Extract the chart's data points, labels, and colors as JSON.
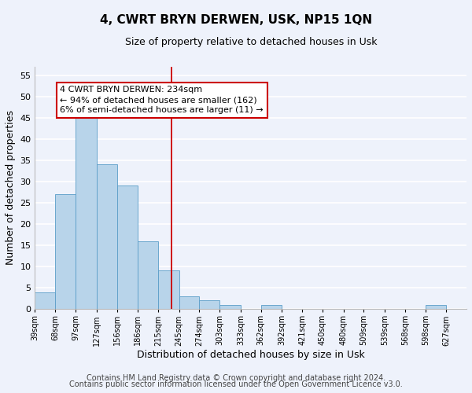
{
  "title": "4, CWRT BRYN DERWEN, USK, NP15 1QN",
  "subtitle": "Size of property relative to detached houses in Usk",
  "xlabel": "Distribution of detached houses by size in Usk",
  "ylabel": "Number of detached properties",
  "bar_left_edges": [
    39,
    68,
    97,
    127,
    156,
    186,
    215,
    245,
    274,
    303,
    333,
    362,
    392,
    421,
    450,
    480,
    509,
    539,
    568,
    598
  ],
  "bar_heights": [
    4,
    27,
    46,
    34,
    29,
    16,
    9,
    3,
    2,
    1,
    0,
    1,
    0,
    0,
    0,
    0,
    0,
    0,
    0,
    1
  ],
  "bar_widths": [
    29,
    29,
    30,
    29,
    30,
    29,
    30,
    29,
    29,
    30,
    29,
    30,
    29,
    29,
    30,
    29,
    30,
    29,
    30,
    29
  ],
  "bar_color": "#b8d4ea",
  "bar_edge_color": "#5a9dc8",
  "tick_labels": [
    "39sqm",
    "68sqm",
    "97sqm",
    "127sqm",
    "156sqm",
    "186sqm",
    "215sqm",
    "245sqm",
    "274sqm",
    "303sqm",
    "333sqm",
    "362sqm",
    "392sqm",
    "421sqm",
    "450sqm",
    "480sqm",
    "509sqm",
    "539sqm",
    "568sqm",
    "598sqm",
    "627sqm"
  ],
  "tick_positions": [
    39,
    68,
    97,
    127,
    156,
    186,
    215,
    245,
    274,
    303,
    333,
    362,
    392,
    421,
    450,
    480,
    509,
    539,
    568,
    598,
    627
  ],
  "vline_x": 234,
  "vline_color": "#cc0000",
  "ylim": [
    0,
    57
  ],
  "yticks": [
    0,
    5,
    10,
    15,
    20,
    25,
    30,
    35,
    40,
    45,
    50,
    55
  ],
  "annotation_line1": "4 CWRT BRYN DERWEN: 234sqm",
  "annotation_line2": "← 94% of detached houses are smaller (162)",
  "annotation_line3": "6% of semi-detached houses are larger (11) →",
  "annotation_box_color": "#ffffff",
  "annotation_box_edge": "#cc0000",
  "footer_line1": "Contains HM Land Registry data © Crown copyright and database right 2024.",
  "footer_line2": "Contains public sector information licensed under the Open Government Licence v3.0.",
  "background_color": "#eef2fb",
  "grid_color": "#ffffff",
  "title_fontsize": 11,
  "subtitle_fontsize": 9,
  "axis_label_fontsize": 9,
  "tick_fontsize": 7,
  "annotation_fontsize": 8,
  "footer_fontsize": 7
}
